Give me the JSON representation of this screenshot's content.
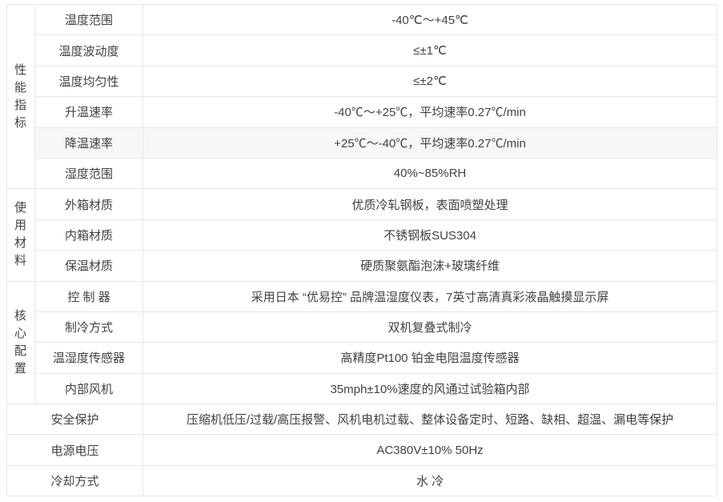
{
  "table": {
    "name": "product-specification-table",
    "groups": [
      {
        "label": "性\n能\n指\n标",
        "rows": [
          {
            "param": "温度范围",
            "value": "-40℃～+45℃"
          },
          {
            "param": "温度波动度",
            "value": "≤±1℃"
          },
          {
            "param": "温度均匀性",
            "value": "≤±2℃"
          },
          {
            "param": "升温速率",
            "value": "-40℃～+25℃，平均速率0.27℃/min"
          },
          {
            "param": "降温速率",
            "value": "+25℃～-40℃，平均速率0.27℃/min",
            "highlight": true
          },
          {
            "param": "湿度范围",
            "value": "40%~85%RH"
          }
        ]
      },
      {
        "label": "使\n用\n材\n料",
        "rows": [
          {
            "param": "外箱材质",
            "value": "优质冷轧钢板，表面喷塑处理"
          },
          {
            "param": "内箱材质",
            "value": "不锈钢板SUS304"
          },
          {
            "param": "保温材质",
            "value": "硬质聚氨酯泡沫+玻璃纤维"
          }
        ]
      },
      {
        "label": "核\n心\n配\n置",
        "rows": [
          {
            "param": "控 制 器",
            "value": "采用日本 “优易控” 品牌温湿度仪表，7英寸高清真彩液晶触摸显示屏"
          },
          {
            "param": "制冷方式",
            "value": "双机复叠式制冷"
          },
          {
            "param": "温湿度传感器",
            "value": "高精度Pt100 铂金电阻温度传感器"
          },
          {
            "param": "内部风机",
            "value": "35mph±10%速度的风通过试验箱内部"
          }
        ]
      }
    ],
    "full_rows": [
      {
        "param": "安全保护",
        "value": "压缩机低压/过载/高压报警、风机电机过载、整体设备定时、短路、缺相、超温、漏电等保护"
      },
      {
        "param": "电源电压",
        "value": "AC380V±10% 50Hz"
      },
      {
        "param": "冷却方式",
        "value": "水 冷"
      }
    ],
    "colors": {
      "border": "#e7e7e7",
      "text": "#424242",
      "highlight_row_bg": "#f7f7f7",
      "page_bg": "#ffffff"
    }
  }
}
